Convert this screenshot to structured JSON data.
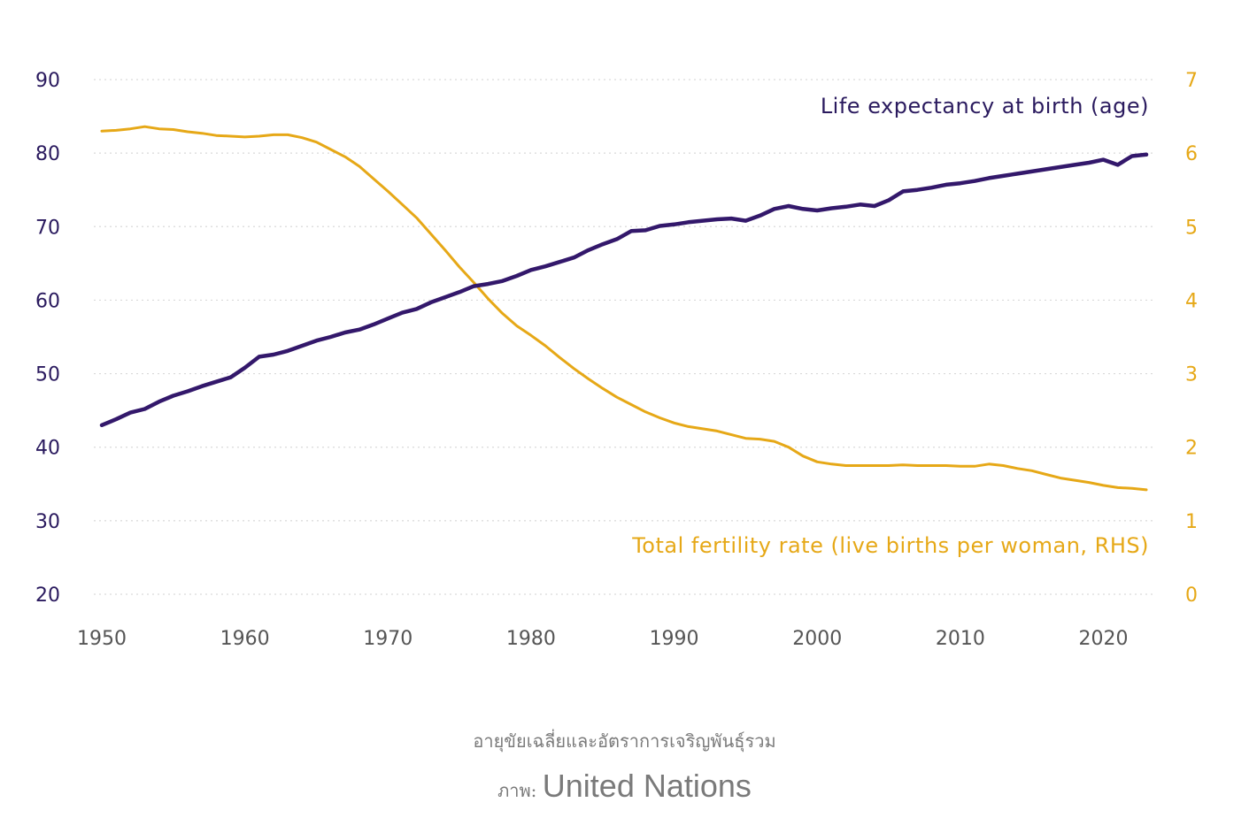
{
  "chart_data": {
    "type": "line",
    "x": [
      1950,
      1951,
      1952,
      1953,
      1954,
      1955,
      1956,
      1957,
      1958,
      1959,
      1960,
      1961,
      1962,
      1963,
      1964,
      1965,
      1966,
      1967,
      1968,
      1969,
      1970,
      1971,
      1972,
      1973,
      1974,
      1975,
      1976,
      1977,
      1978,
      1979,
      1980,
      1981,
      1982,
      1983,
      1984,
      1985,
      1986,
      1987,
      1988,
      1989,
      1990,
      1991,
      1992,
      1993,
      1994,
      1995,
      1996,
      1997,
      1998,
      1999,
      2000,
      2001,
      2002,
      2003,
      2004,
      2005,
      2006,
      2007,
      2008,
      2009,
      2010,
      2011,
      2012,
      2013,
      2014,
      2015,
      2016,
      2017,
      2018,
      2019,
      2020,
      2021,
      2022,
      2023
    ],
    "xlim": [
      1950,
      2023
    ],
    "xticks": [
      "1950",
      "1960",
      "1970",
      "1980",
      "1990",
      "2000",
      "2010",
      "2020"
    ],
    "series": [
      {
        "name": "Life expectancy at birth (age)",
        "axis": "left",
        "color": "#33186b",
        "values": [
          43.0,
          43.8,
          44.7,
          45.2,
          46.2,
          47.0,
          47.6,
          48.3,
          48.9,
          49.5,
          50.8,
          52.3,
          52.6,
          53.1,
          53.8,
          54.5,
          55.0,
          55.6,
          56.0,
          56.7,
          57.5,
          58.3,
          58.8,
          59.7,
          60.4,
          61.1,
          61.9,
          62.2,
          62.6,
          63.3,
          64.1,
          64.6,
          65.2,
          65.8,
          66.8,
          67.6,
          68.3,
          69.4,
          69.5,
          70.1,
          70.3,
          70.6,
          70.8,
          71.0,
          71.1,
          70.8,
          71.5,
          72.4,
          72.8,
          72.4,
          72.2,
          72.5,
          72.7,
          73.0,
          72.8,
          73.6,
          74.8,
          75.0,
          75.3,
          75.7,
          75.9,
          76.2,
          76.6,
          76.9,
          77.2,
          77.5,
          77.8,
          78.1,
          78.4,
          78.7,
          79.1,
          78.4,
          79.6,
          79.8
        ]
      },
      {
        "name": "Total fertility rate (live births per woman, RHS)",
        "axis": "right",
        "color": "#e6a817",
        "values": [
          6.3,
          6.31,
          6.33,
          6.36,
          6.33,
          6.32,
          6.29,
          6.27,
          6.24,
          6.23,
          6.22,
          6.23,
          6.25,
          6.25,
          6.21,
          6.15,
          6.05,
          5.95,
          5.82,
          5.65,
          5.48,
          5.3,
          5.12,
          4.9,
          4.68,
          4.45,
          4.24,
          4.02,
          3.82,
          3.65,
          3.52,
          3.38,
          3.22,
          3.07,
          2.93,
          2.8,
          2.68,
          2.58,
          2.48,
          2.4,
          2.33,
          2.28,
          2.25,
          2.22,
          2.17,
          2.12,
          2.11,
          2.08,
          2.0,
          1.88,
          1.8,
          1.77,
          1.75,
          1.75,
          1.75,
          1.75,
          1.76,
          1.75,
          1.75,
          1.75,
          1.74,
          1.74,
          1.77,
          1.75,
          1.71,
          1.68,
          1.63,
          1.58,
          1.55,
          1.52,
          1.48,
          1.45,
          1.44,
          1.42
        ]
      }
    ],
    "y_left": {
      "range": [
        20,
        90
      ],
      "ticks": [
        "20",
        "30",
        "40",
        "50",
        "60",
        "70",
        "80",
        "90"
      ],
      "color": "#2a1a5e"
    },
    "y_right": {
      "range": [
        0,
        7
      ],
      "ticks": [
        "0",
        "1",
        "2",
        "3",
        "4",
        "5",
        "6",
        "7"
      ],
      "color": "#e6a817"
    },
    "annotations": {
      "life_expectancy": "Life expectancy at birth (age)",
      "fertility": "Total fertility rate (live births per woman, RHS)"
    },
    "grid": "dotted horizontal"
  },
  "caption": {
    "text": "อายุขัยเฉลี่ยและอัตราการเจริญพันธุ์รวม",
    "credit_prefix": "ภาพ: ",
    "credit_source": "United Nations"
  }
}
